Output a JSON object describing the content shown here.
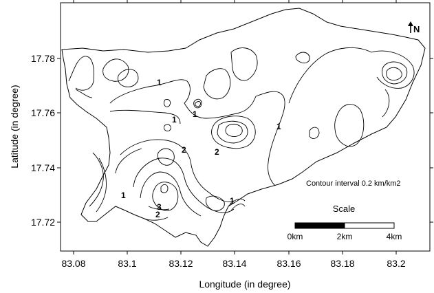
{
  "axes": {
    "x_title": "Longitude (in degree)",
    "y_title": "Latitude (in degree)",
    "x_ticks": [
      "83.08",
      "83.1",
      "83.12",
      "83.14",
      "83.16",
      "83.18",
      "83.2"
    ],
    "y_ticks": [
      "17.78",
      "17.76",
      "17.74",
      "17.72"
    ]
  },
  "north_arrow": {
    "label": "N"
  },
  "contour_note": "Contour interval 0.2 km/km2",
  "scale_bar": {
    "title": "Scale",
    "labels": [
      "0km",
      "2km",
      "4km"
    ]
  },
  "contour_labels": [
    "1",
    "1",
    "1",
    "1",
    "2",
    "2",
    "1",
    "3",
    "2",
    "1"
  ]
}
